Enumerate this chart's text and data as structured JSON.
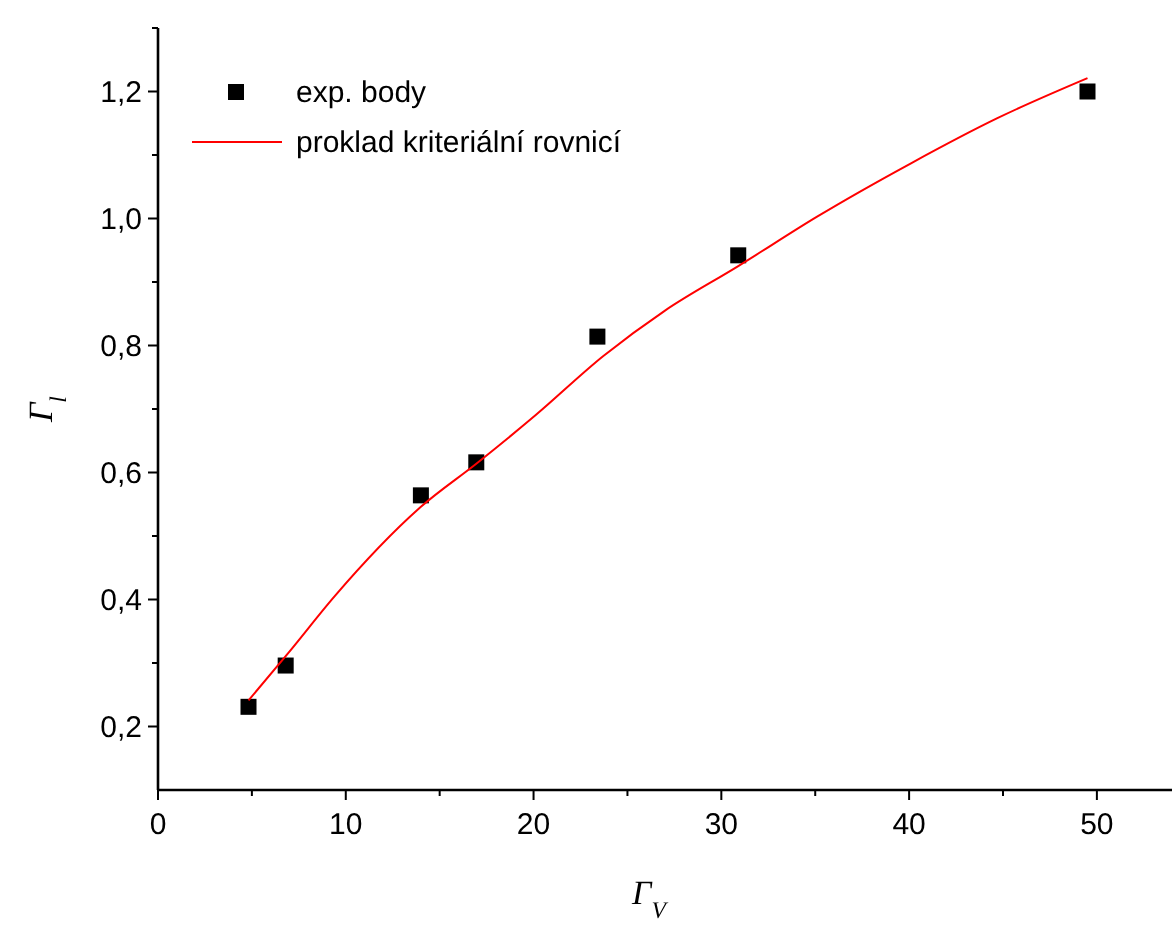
{
  "chart_data": {
    "type": "scatter",
    "xlabel": "Γ$_{V}$",
    "ylabel": "Γ$_{l}$",
    "xlim": [
      0,
      54
    ],
    "ylim": [
      0.1,
      1.3
    ],
    "xticks": [
      0,
      {
        "value": 5,
        "label": null
      },
      10,
      {
        "value": 15,
        "label": null
      },
      20,
      {
        "value": 25,
        "label": null
      },
      30,
      {
        "value": 35,
        "label": null
      },
      40,
      {
        "value": 45,
        "label": null
      },
      50
    ],
    "yticks": [
      {
        "value": 0.2,
        "label": "0,2"
      },
      {
        "value": 0.3,
        "label": null
      },
      {
        "value": 0.4,
        "label": "0,4"
      },
      {
        "value": 0.5,
        "label": null
      },
      {
        "value": 0.6,
        "label": "0,6"
      },
      {
        "value": 0.7,
        "label": null
      },
      {
        "value": 0.8,
        "label": "0,8"
      },
      {
        "value": 0.9,
        "label": null
      },
      {
        "value": 1.0,
        "label": "1,0"
      },
      {
        "value": 1.1,
        "label": null
      },
      {
        "value": 1.2,
        "label": "1,2"
      },
      {
        "value": 1.3,
        "label": null
      }
    ],
    "grid": false,
    "legend": "top left",
    "series": [
      {
        "name": "exp. body",
        "marker": "square",
        "color": "#000000",
        "x": [
          4.82,
          6.8,
          14.0,
          16.95,
          23.4,
          30.9,
          49.5
        ],
        "values": [
          0.231,
          0.296,
          0.564,
          0.616,
          0.814,
          0.942,
          1.2
        ]
      },
      {
        "name": "proklad kriteriální rovnicí",
        "type": "line",
        "marker": "none",
        "line_style": "solid",
        "color": "#ff0000",
        "x": [
          4.82,
          7,
          9.4,
          14,
          17,
          20.1,
          23.7,
          27,
          30.9,
          35.1,
          40.1,
          44.7,
          49.5
        ],
        "values": [
          0.241,
          0.318,
          0.405,
          0.546,
          0.615,
          0.69,
          0.783,
          0.855,
          0.925,
          1.003,
          1.087,
          1.158,
          1.221
        ]
      }
    ]
  }
}
